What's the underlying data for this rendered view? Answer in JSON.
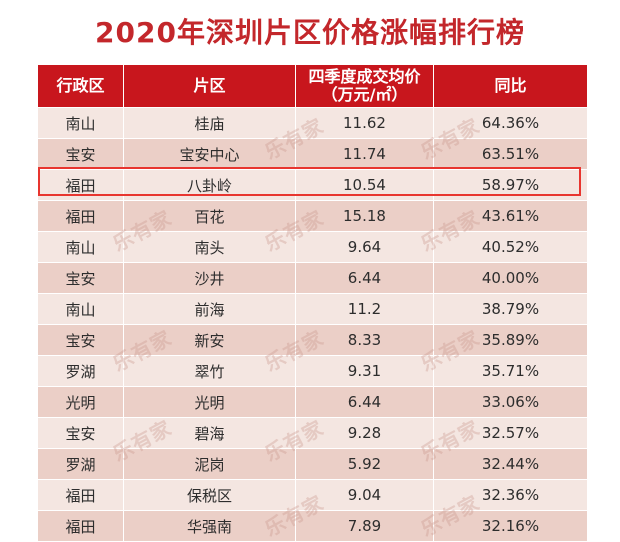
{
  "title": "2020年深圳片区价格涨幅排行榜",
  "columns": {
    "district": "行政区",
    "area": "片区",
    "price_line1": "四季度成交均价",
    "price_line2": "（万元/㎡）",
    "growth": "同比"
  },
  "rows": [
    {
      "district": "南山",
      "area": "桂庙",
      "price": "11.62",
      "growth": "64.36%"
    },
    {
      "district": "宝安",
      "area": "宝安中心",
      "price": "11.74",
      "growth": "63.51%"
    },
    {
      "district": "福田",
      "area": "八卦岭",
      "price": "10.54",
      "growth": "58.97%"
    },
    {
      "district": "福田",
      "area": "百花",
      "price": "15.18",
      "growth": "43.61%"
    },
    {
      "district": "南山",
      "area": "南头",
      "price": "9.64",
      "growth": "40.52%"
    },
    {
      "district": "宝安",
      "area": "沙井",
      "price": "6.44",
      "growth": "40.00%"
    },
    {
      "district": "南山",
      "area": "前海",
      "price": "11.2",
      "growth": "38.79%"
    },
    {
      "district": "宝安",
      "area": "新安",
      "price": "8.33",
      "growth": "35.89%"
    },
    {
      "district": "罗湖",
      "area": "翠竹",
      "price": "9.31",
      "growth": "35.71%"
    },
    {
      "district": "光明",
      "area": "光明",
      "price": "6.44",
      "growth": "33.06%"
    },
    {
      "district": "宝安",
      "area": "碧海",
      "price": "9.28",
      "growth": "32.57%"
    },
    {
      "district": "罗湖",
      "area": "泥岗",
      "price": "5.92",
      "growth": "32.44%"
    },
    {
      "district": "福田",
      "area": "保税区",
      "price": "9.04",
      "growth": "32.36%"
    },
    {
      "district": "福田",
      "area": "华强南",
      "price": "7.89",
      "growth": "32.16%"
    }
  ],
  "highlight_row": 2,
  "watermark": "乐有家",
  "colors": {
    "title": "#c3272b",
    "header_bg": "#c8161d",
    "row_light": "#f4e6e1",
    "row_dark": "#ebcfc7",
    "highlight": "#e8352f"
  }
}
